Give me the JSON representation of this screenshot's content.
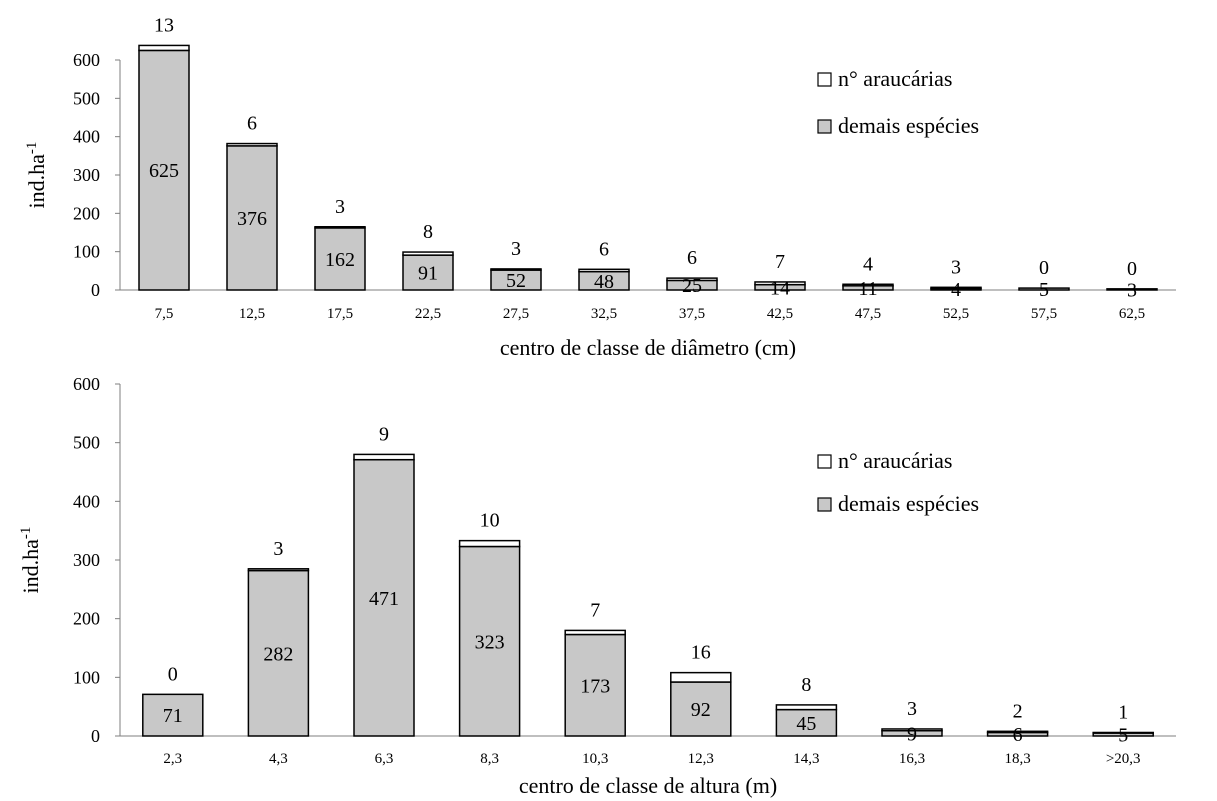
{
  "chart_data": [
    {
      "type": "bar",
      "stacked": true,
      "categories": [
        "7,5",
        "12,5",
        "17,5",
        "22,5",
        "27,5",
        "32,5",
        "37,5",
        "42,5",
        "47,5",
        "52,5",
        "57,5",
        "62,5"
      ],
      "series": [
        {
          "name": "demais espécies",
          "values": [
            625,
            376,
            162,
            91,
            52,
            48,
            25,
            14,
            11,
            4,
            5,
            3
          ],
          "color": "#c8c8c8"
        },
        {
          "name": "n° araucárias",
          "values": [
            13,
            6,
            3,
            8,
            3,
            6,
            6,
            7,
            4,
            3,
            0,
            0
          ],
          "color": "#ffffff"
        }
      ],
      "title": "",
      "xlabel": "centro de classe de diâmetro (cm)",
      "ylabel": "ind.ha",
      "ylabel_sup": "-1",
      "ylim": [
        0,
        600
      ],
      "yticks": [
        0,
        100,
        200,
        300,
        400,
        500,
        600
      ],
      "grid": false,
      "legend": "top-right",
      "legend_order": [
        "n° araucárias",
        "demais espécies"
      ]
    },
    {
      "type": "bar",
      "stacked": true,
      "categories": [
        "2,3",
        "4,3",
        "6,3",
        "8,3",
        "10,3",
        "12,3",
        "14,3",
        "16,3",
        "18,3",
        ">20,3"
      ],
      "series": [
        {
          "name": "demais espécies",
          "values": [
            71,
            282,
            471,
            323,
            173,
            92,
            45,
            9,
            6,
            5
          ],
          "color": "#c8c8c8"
        },
        {
          "name": "n° araucárias",
          "values": [
            0,
            3,
            9,
            10,
            7,
            16,
            8,
            3,
            2,
            1
          ],
          "color": "#ffffff"
        }
      ],
      "title": "",
      "xlabel": "centro de classe de altura (m)",
      "ylabel": "ind.ha",
      "ylabel_sup": "-1",
      "ylim": [
        0,
        600
      ],
      "yticks": [
        0,
        100,
        200,
        300,
        400,
        500,
        600
      ],
      "grid": false,
      "legend": "top-right",
      "legend_order": [
        "n° araucárias",
        "demais espécies"
      ]
    }
  ]
}
